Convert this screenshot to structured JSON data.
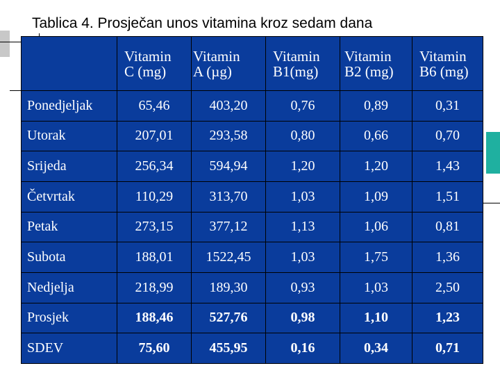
{
  "title": "Tablica 4. Prosječan unos vitamina kroz sedam dana",
  "colors": {
    "table_background": "#0a3c9c",
    "table_text": "#ffffff",
    "accent_blue": "#1a88d8",
    "accent_green": "#36c06a",
    "accent_teal": "#1fb0a0"
  },
  "table": {
    "headers": [
      {
        "line1": "Vitamin",
        "line2": "C (mg)"
      },
      {
        "line1": "Vitamin",
        "line2": "A (µg)"
      },
      {
        "line1": "Vitamin",
        "line2": "B1(mg)"
      },
      {
        "line1": "Vitamin",
        "line2": "B2 (mg)"
      },
      {
        "line1": "Vitamin",
        "line2": "B6 (mg)"
      }
    ],
    "rows": [
      {
        "label": "Ponedjeljak",
        "values": [
          "65,46",
          "403,20",
          "0,76",
          "0,89",
          "0,31"
        ]
      },
      {
        "label": "Utorak",
        "values": [
          "207,01",
          "293,58",
          "0,80",
          "0,66",
          "0,70"
        ]
      },
      {
        "label": "Srijeda",
        "values": [
          "256,34",
          "594,94",
          "1,20",
          "1,20",
          "1,43"
        ]
      },
      {
        "label": "Četvrtak",
        "values": [
          "110,29",
          "313,70",
          "1,03",
          "1,09",
          "1,51"
        ]
      },
      {
        "label": "Petak",
        "values": [
          "273,15",
          "377,12",
          "1,13",
          "1,06",
          "0,81"
        ]
      },
      {
        "label": "Subota",
        "values": [
          "188,01",
          "1522,45",
          "1,03",
          "1,75",
          "1,36"
        ]
      },
      {
        "label": "Nedjelja",
        "values": [
          "218,99",
          "189,30",
          "0,93",
          "1,03",
          "2,50"
        ]
      },
      {
        "label": "Prosjek",
        "values": [
          "188,46",
          "527,76",
          "0,98",
          "1,10",
          "1,23"
        ]
      },
      {
        "label": "SDEV",
        "values": [
          "75,60",
          "455,95",
          "0,16",
          "0,34",
          "0,71"
        ]
      }
    ]
  }
}
